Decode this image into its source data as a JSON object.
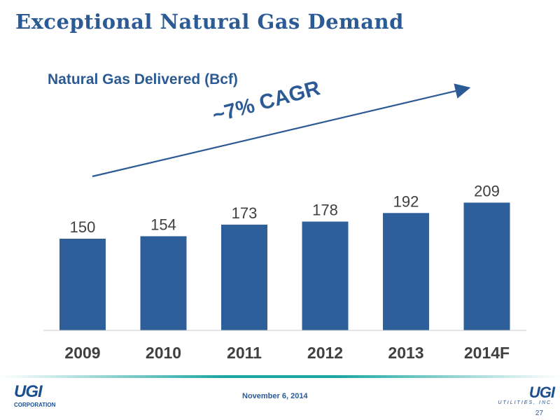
{
  "slide": {
    "title": "Exceptional Natural Gas Demand",
    "footer_date": "November 6, 2014",
    "page_number": "27",
    "logo_left": {
      "mark": "UGI",
      "sub": "CORPORATION"
    },
    "logo_right": {
      "mark": "UGI",
      "sub": "UTILITIES, INC."
    },
    "accent_color": "#2c5a94",
    "bar_color": "#2e5f9a",
    "rule_color": "#1aa6a0"
  },
  "chart_data": {
    "type": "bar",
    "title": "Natural Gas Delivered (Bcf)",
    "categories": [
      "2009",
      "2010",
      "2011",
      "2012",
      "2013",
      "2014F"
    ],
    "values": [
      150,
      154,
      173,
      178,
      192,
      209
    ],
    "data_labels": [
      "150",
      "154",
      "173",
      "178",
      "192",
      "209"
    ],
    "annotation": "~7% CAGR",
    "xlabel": "",
    "ylabel": "",
    "ylim": [
      0,
      220
    ],
    "y_axis_visible": false,
    "grid": false,
    "legend": "none"
  }
}
